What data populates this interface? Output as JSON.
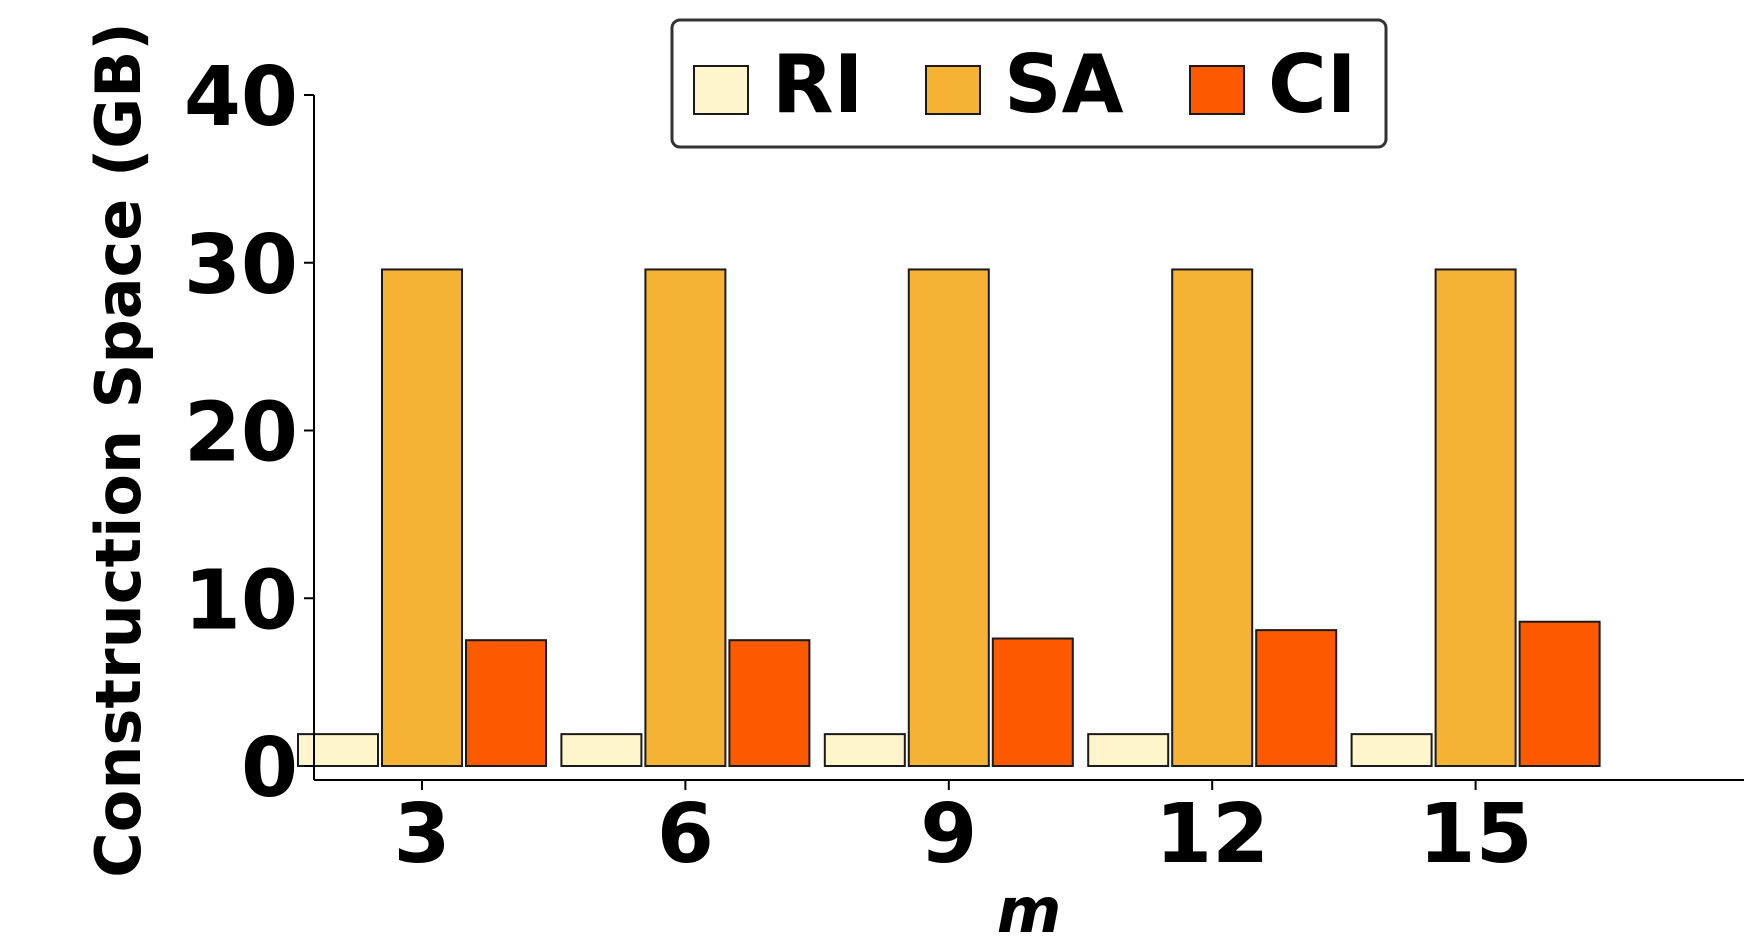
{
  "chart_data": {
    "type": "bar",
    "xlabel": "m",
    "ylabel": "Construction Space (GB)",
    "categories": [
      "3",
      "6",
      "9",
      "12",
      "15"
    ],
    "ylim": [
      0,
      40
    ],
    "yticks": [
      "0",
      "10",
      "20",
      "30",
      "40"
    ],
    "grid": false,
    "legend_position": "top-center",
    "series": [
      {
        "name": "RI",
        "color": "#fff5cc",
        "values": [
          1.9,
          1.9,
          1.9,
          1.9,
          1.9
        ]
      },
      {
        "name": "SA",
        "color": "#f5b335",
        "values": [
          29.6,
          29.6,
          29.6,
          29.6,
          29.6
        ]
      },
      {
        "name": "CI",
        "color": "#fd5a00",
        "values": [
          7.5,
          7.5,
          7.6,
          8.1,
          8.6
        ]
      }
    ]
  }
}
